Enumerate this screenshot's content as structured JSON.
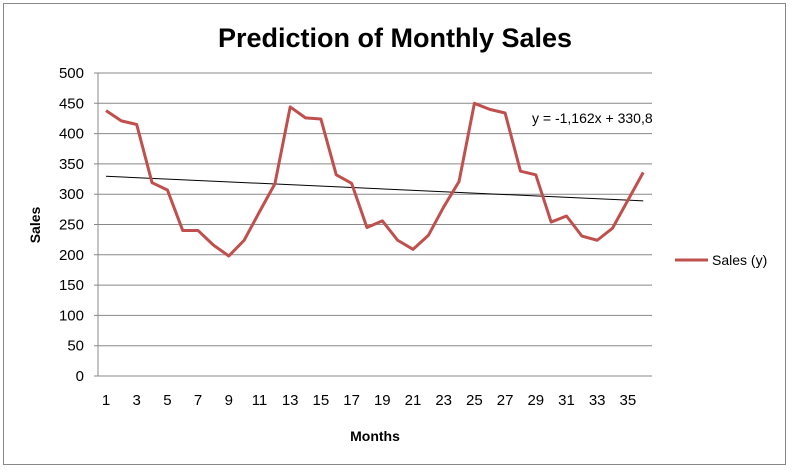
{
  "chart_data": {
    "type": "line",
    "title": "Prediction of Monthly Sales",
    "xlabel": "Months",
    "ylabel": "Sales",
    "ylim": [
      0,
      500
    ],
    "yticks": [
      "0",
      "50",
      "100",
      "150",
      "200",
      "250",
      "300",
      "350",
      "400",
      "450",
      "500"
    ],
    "xticks": [
      "1",
      "3",
      "5",
      "7",
      "9",
      "11",
      "13",
      "15",
      "17",
      "19",
      "21",
      "23",
      "25",
      "27",
      "29",
      "31",
      "33",
      "35"
    ],
    "grid": true,
    "legend_position": "right",
    "series": [
      {
        "name": "Sales (y)",
        "color": "#c0504d",
        "x": [
          1,
          2,
          3,
          4,
          5,
          6,
          7,
          8,
          9,
          10,
          11,
          12,
          13,
          14,
          15,
          16,
          17,
          18,
          19,
          20,
          21,
          22,
          23,
          24,
          25,
          26,
          27,
          28,
          29,
          30,
          31,
          32,
          33,
          34,
          35,
          36
        ],
        "values": [
          438,
          421,
          415,
          319,
          307,
          240,
          240,
          216,
          198,
          224,
          271,
          317,
          444,
          426,
          424,
          332,
          318,
          245,
          256,
          224,
          209,
          232,
          279,
          321,
          450,
          440,
          434,
          338,
          332,
          254,
          264,
          231,
          224,
          244,
          290,
          336
        ]
      }
    ],
    "trendline": {
      "slope": -1.162,
      "intercept": 330.8,
      "label": "y = -1,162x + 330,8",
      "color": "#000000"
    }
  }
}
